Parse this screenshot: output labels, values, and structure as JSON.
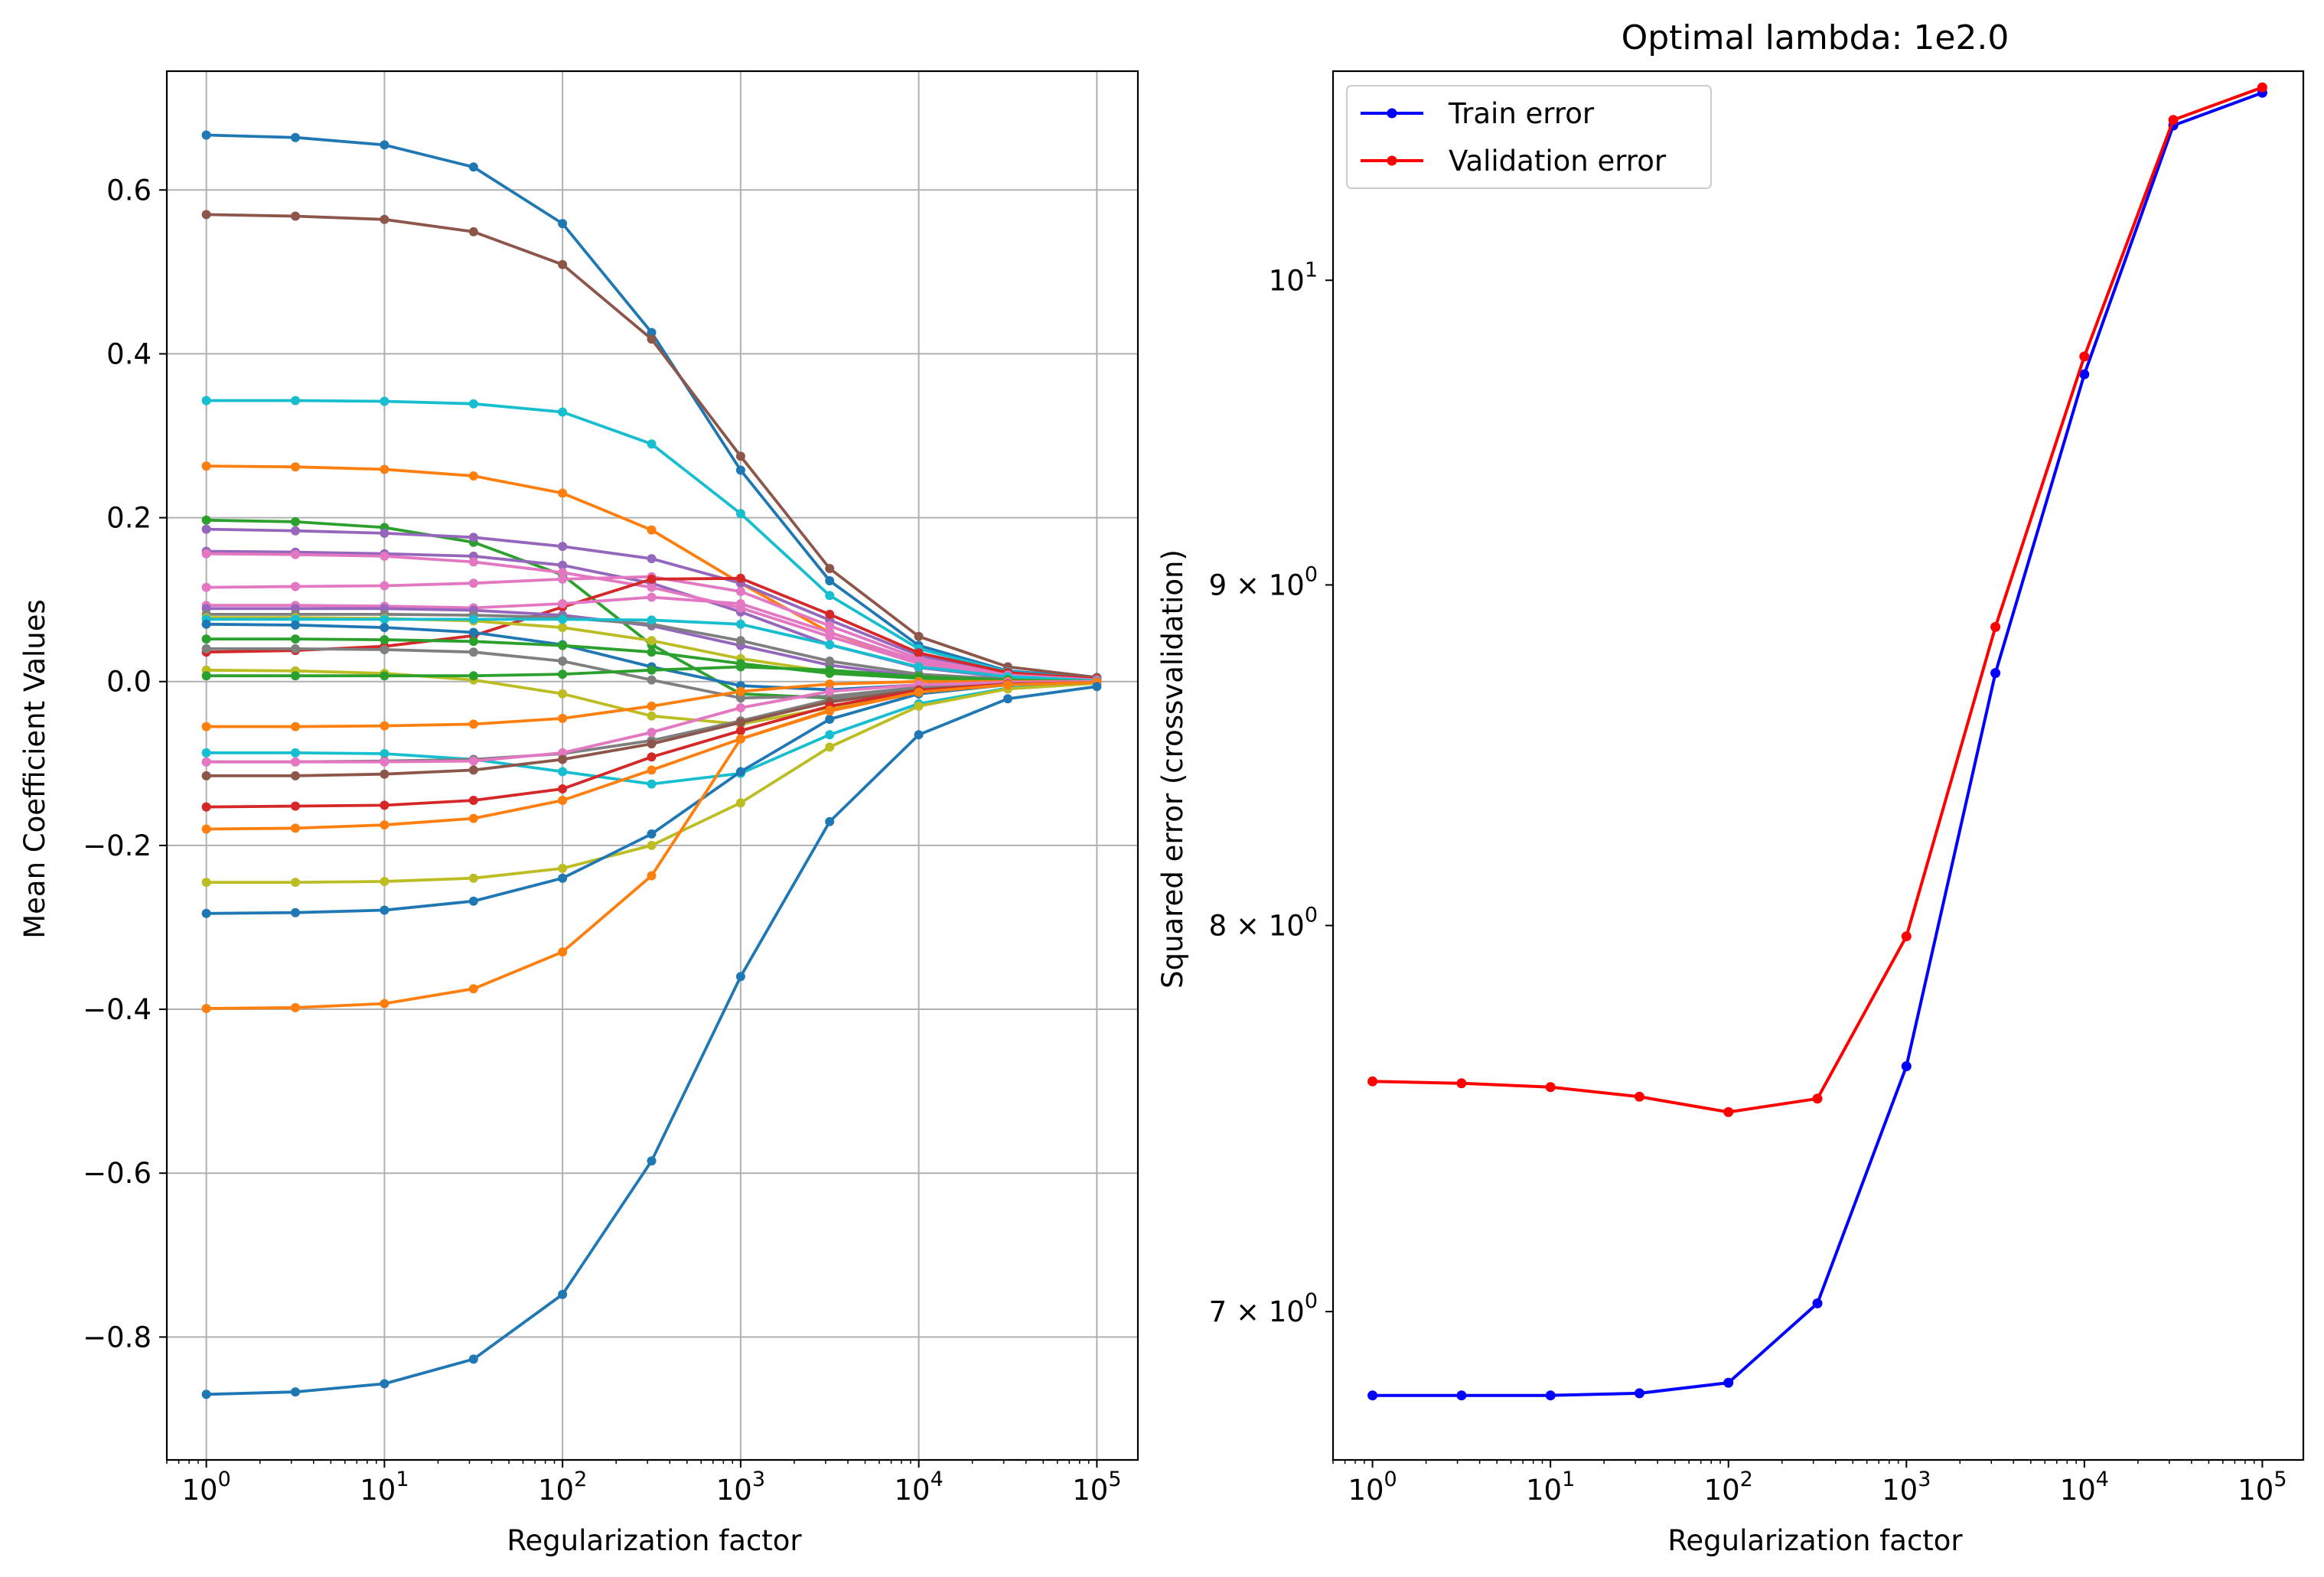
{
  "chart_data": [
    {
      "type": "line",
      "title": "",
      "xlabel": "Regularization factor",
      "ylabel": "Mean Coefficient Values",
      "x_scale": "log",
      "y_scale": "linear",
      "x": [
        1,
        3.1623,
        10,
        31.623,
        100,
        316.23,
        1000,
        3162.3,
        10000,
        31623,
        100000
      ],
      "xlim": [
        0.6,
        170000
      ],
      "ylim": [
        -0.95,
        0.745
      ],
      "grid": true,
      "x_ticks": [
        {
          "value": 1,
          "base": "10",
          "exp": "0"
        },
        {
          "value": 10,
          "base": "10",
          "exp": "1"
        },
        {
          "value": 100,
          "base": "10",
          "exp": "2"
        },
        {
          "value": 1000,
          "base": "10",
          "exp": "3"
        },
        {
          "value": 10000,
          "base": "10",
          "exp": "4"
        },
        {
          "value": 100000,
          "base": "10",
          "exp": "5"
        }
      ],
      "y_ticks": [
        {
          "value": 0.6,
          "label": "0.6"
        },
        {
          "value": 0.4,
          "label": "0.4"
        },
        {
          "value": 0.2,
          "label": "0.2"
        },
        {
          "value": 0.0,
          "label": "0.0"
        },
        {
          "value": -0.2,
          "label": "−0.2"
        },
        {
          "value": -0.4,
          "label": "−0.4"
        },
        {
          "value": -0.6,
          "label": "−0.6"
        },
        {
          "value": -0.8,
          "label": "−0.8"
        }
      ],
      "series": [
        {
          "color": "#1f77b4",
          "values": [
            0.667,
            0.664,
            0.655,
            0.628,
            0.559,
            0.426,
            0.258,
            0.123,
            0.044,
            0.013,
            0.004
          ]
        },
        {
          "color": "#8c564b",
          "values": [
            0.57,
            0.568,
            0.564,
            0.549,
            0.509,
            0.418,
            0.275,
            0.138,
            0.055,
            0.018,
            0.005
          ]
        },
        {
          "color": "#17becf",
          "values": [
            0.343,
            0.343,
            0.342,
            0.339,
            0.329,
            0.29,
            0.205,
            0.105,
            0.04,
            0.012,
            0.003
          ]
        },
        {
          "color": "#ff7f0e",
          "values": [
            0.263,
            0.262,
            0.259,
            0.251,
            0.23,
            0.185,
            0.12,
            0.06,
            0.022,
            0.007,
            0.002
          ]
        },
        {
          "color": "#2ca02c",
          "values": [
            0.197,
            0.195,
            0.188,
            0.17,
            0.13,
            0.045,
            -0.015,
            -0.02,
            -0.008,
            -0.002,
            0.0
          ]
        },
        {
          "color": "#9467bd",
          "values": [
            0.186,
            0.184,
            0.181,
            0.176,
            0.165,
            0.15,
            0.12,
            0.075,
            0.032,
            0.01,
            0.003
          ]
        },
        {
          "color": "#9467bd",
          "values": [
            0.159,
            0.158,
            0.156,
            0.153,
            0.142,
            0.12,
            0.085,
            0.045,
            0.017,
            0.005,
            0.001
          ]
        },
        {
          "color": "#e377c2",
          "values": [
            0.156,
            0.155,
            0.153,
            0.146,
            0.133,
            0.115,
            0.09,
            0.055,
            0.022,
            0.007,
            0.002
          ]
        },
        {
          "color": "#e377c2",
          "values": [
            0.115,
            0.116,
            0.117,
            0.12,
            0.125,
            0.128,
            0.11,
            0.068,
            0.028,
            0.009,
            0.002
          ]
        },
        {
          "color": "#d62728",
          "values": [
            0.036,
            0.038,
            0.043,
            0.056,
            0.091,
            0.125,
            0.126,
            0.082,
            0.035,
            0.011,
            0.003
          ]
        },
        {
          "color": "#e377c2",
          "values": [
            0.093,
            0.093,
            0.092,
            0.09,
            0.095,
            0.103,
            0.095,
            0.06,
            0.025,
            0.008,
            0.002
          ]
        },
        {
          "color": "#9467bd",
          "values": [
            0.089,
            0.089,
            0.089,
            0.087,
            0.081,
            0.068,
            0.044,
            0.02,
            0.006,
            0.002,
            0.0
          ]
        },
        {
          "color": "#7f7f7f",
          "values": [
            0.082,
            0.082,
            0.082,
            0.081,
            0.078,
            0.07,
            0.05,
            0.025,
            0.009,
            0.003,
            0.001
          ]
        },
        {
          "color": "#bcbd22",
          "values": [
            0.078,
            0.078,
            0.077,
            0.074,
            0.066,
            0.05,
            0.028,
            0.012,
            0.004,
            0.001,
            0.0
          ]
        },
        {
          "color": "#17becf",
          "values": [
            0.076,
            0.076,
            0.076,
            0.076,
            0.076,
            0.075,
            0.07,
            0.045,
            0.018,
            0.006,
            0.001
          ]
        },
        {
          "color": "#1f77b4",
          "values": [
            0.07,
            0.069,
            0.066,
            0.06,
            0.045,
            0.018,
            -0.005,
            -0.01,
            -0.004,
            -0.001,
            0.0
          ]
        },
        {
          "color": "#2ca02c",
          "values": [
            0.052,
            0.052,
            0.051,
            0.049,
            0.044,
            0.036,
            0.022,
            0.01,
            0.004,
            0.001,
            0.0
          ]
        },
        {
          "color": "#7f7f7f",
          "values": [
            0.04,
            0.04,
            0.039,
            0.036,
            0.025,
            0.002,
            -0.02,
            -0.018,
            -0.007,
            -0.002,
            0.0
          ]
        },
        {
          "color": "#bcbd22",
          "values": [
            0.014,
            0.013,
            0.01,
            0.002,
            -0.015,
            -0.042,
            -0.052,
            -0.032,
            -0.012,
            -0.004,
            -0.001
          ]
        },
        {
          "color": "#2ca02c",
          "values": [
            0.007,
            0.007,
            0.007,
            0.007,
            0.009,
            0.014,
            0.018,
            0.014,
            0.006,
            0.002,
            0.0
          ]
        },
        {
          "color": "#ff7f0e",
          "values": [
            -0.055,
            -0.055,
            -0.054,
            -0.052,
            -0.045,
            -0.03,
            -0.012,
            -0.003,
            0.0,
            0.0,
            0.0
          ]
        },
        {
          "color": "#17becf",
          "values": [
            -0.087,
            -0.087,
            -0.088,
            -0.095,
            -0.11,
            -0.125,
            -0.112,
            -0.065,
            -0.027,
            -0.008,
            -0.002
          ]
        },
        {
          "color": "#7f7f7f",
          "values": [
            -0.098,
            -0.098,
            -0.097,
            -0.095,
            -0.088,
            -0.072,
            -0.048,
            -0.022,
            -0.008,
            -0.002,
            0.0
          ]
        },
        {
          "color": "#e377c2",
          "values": [
            -0.098,
            -0.098,
            -0.098,
            -0.097,
            -0.087,
            -0.062,
            -0.032,
            -0.012,
            -0.004,
            -0.001,
            0.0
          ]
        },
        {
          "color": "#8c564b",
          "values": [
            -0.115,
            -0.115,
            -0.113,
            -0.108,
            -0.095,
            -0.076,
            -0.05,
            -0.025,
            -0.01,
            -0.003,
            -0.001
          ]
        },
        {
          "color": "#d62728",
          "values": [
            -0.153,
            -0.152,
            -0.151,
            -0.145,
            -0.131,
            -0.092,
            -0.06,
            -0.03,
            -0.011,
            -0.003,
            -0.001
          ]
        },
        {
          "color": "#ff7f0e",
          "values": [
            -0.18,
            -0.179,
            -0.175,
            -0.167,
            -0.145,
            -0.108,
            -0.07,
            -0.035,
            -0.013,
            -0.004,
            -0.001
          ]
        },
        {
          "color": "#bcbd22",
          "values": [
            -0.245,
            -0.245,
            -0.244,
            -0.24,
            -0.228,
            -0.2,
            -0.148,
            -0.08,
            -0.03,
            -0.009,
            -0.002
          ]
        },
        {
          "color": "#1f77b4",
          "values": [
            -0.283,
            -0.282,
            -0.279,
            -0.268,
            -0.24,
            -0.186,
            -0.11,
            -0.046,
            -0.015,
            -0.004,
            -0.001
          ]
        },
        {
          "color": "#ff7f0e",
          "values": [
            -0.399,
            -0.398,
            -0.393,
            -0.375,
            -0.33,
            -0.237,
            -0.07,
            -0.036,
            -0.013,
            -0.004,
            -0.001
          ]
        },
        {
          "color": "#1f77b4",
          "values": [
            -0.87,
            -0.867,
            -0.857,
            -0.827,
            -0.748,
            -0.585,
            -0.36,
            -0.171,
            -0.065,
            -0.021,
            -0.006
          ]
        }
      ]
    },
    {
      "type": "line",
      "title": "Optimal lambda: 1e2.0",
      "xlabel": "Regularization factor",
      "ylabel": "Squared error (crossvalidation)",
      "x_scale": "log",
      "y_scale": "log",
      "x": [
        1,
        3.1623,
        10,
        31.623,
        100,
        316.23,
        1000,
        3162.3,
        10000,
        31623,
        100000
      ],
      "xlim": [
        0.6,
        170000
      ],
      "ylim": [
        6.65,
        10.75
      ],
      "grid": false,
      "legend_position": "top-left",
      "x_ticks": [
        {
          "value": 1,
          "base": "10",
          "exp": "0"
        },
        {
          "value": 10,
          "base": "10",
          "exp": "1"
        },
        {
          "value": 100,
          "base": "10",
          "exp": "2"
        },
        {
          "value": 1000,
          "base": "10",
          "exp": "3"
        },
        {
          "value": 10000,
          "base": "10",
          "exp": "4"
        },
        {
          "value": 100000,
          "base": "10",
          "exp": "5"
        }
      ],
      "y_ticks": [
        {
          "value": 10,
          "mantissa": "",
          "base": "10",
          "exp": "1"
        },
        {
          "value": 9,
          "mantissa": "9 × ",
          "base": "10",
          "exp": "0"
        },
        {
          "value": 8,
          "mantissa": "8 × ",
          "base": "10",
          "exp": "0"
        },
        {
          "value": 7,
          "mantissa": "7 × ",
          "base": "10",
          "exp": "0"
        }
      ],
      "series": [
        {
          "name": "Train error",
          "color": "#0000ff",
          "values": [
            6.8,
            6.8,
            6.8,
            6.805,
            6.83,
            7.02,
            7.62,
            8.73,
            9.68,
            10.55,
            10.67
          ]
        },
        {
          "name": "Validation error",
          "color": "#ff0000",
          "values": [
            7.58,
            7.575,
            7.565,
            7.54,
            7.5,
            7.535,
            7.97,
            8.87,
            9.74,
            10.57,
            10.69
          ]
        }
      ]
    }
  ]
}
